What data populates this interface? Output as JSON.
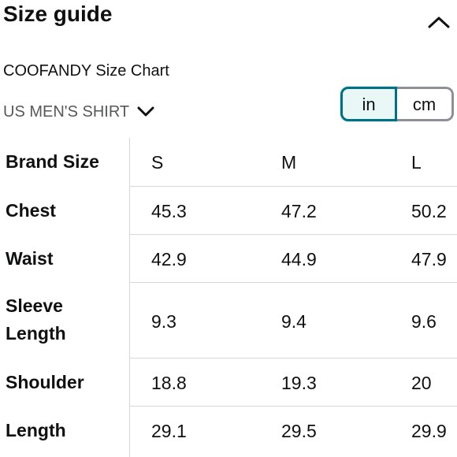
{
  "header": {
    "title": "Size guide",
    "collapse_icon": "chevron-up-icon"
  },
  "subtitle": "COOFANDY Size Chart",
  "size_type": {
    "label": "US MEN'S SHIRT",
    "icon": "chevron-down-icon"
  },
  "unit_toggle": {
    "options": [
      "in",
      "cm"
    ],
    "selected": "in",
    "accent_color": "#007185"
  },
  "size_table": {
    "header_label": "Brand Size",
    "sizes": [
      "S",
      "M",
      "L"
    ],
    "rows": [
      {
        "label": "Chest",
        "values": [
          "45.3",
          "47.2",
          "50.2"
        ]
      },
      {
        "label": "Waist",
        "values": [
          "42.9",
          "44.9",
          "47.9"
        ]
      },
      {
        "label": "Sleeve Length",
        "values": [
          "9.3",
          "9.4",
          "9.6"
        ]
      },
      {
        "label": "Shoulder",
        "values": [
          "18.8",
          "19.3",
          "20"
        ]
      },
      {
        "label": "Length",
        "values": [
          "29.1",
          "29.5",
          "29.9"
        ]
      }
    ]
  }
}
